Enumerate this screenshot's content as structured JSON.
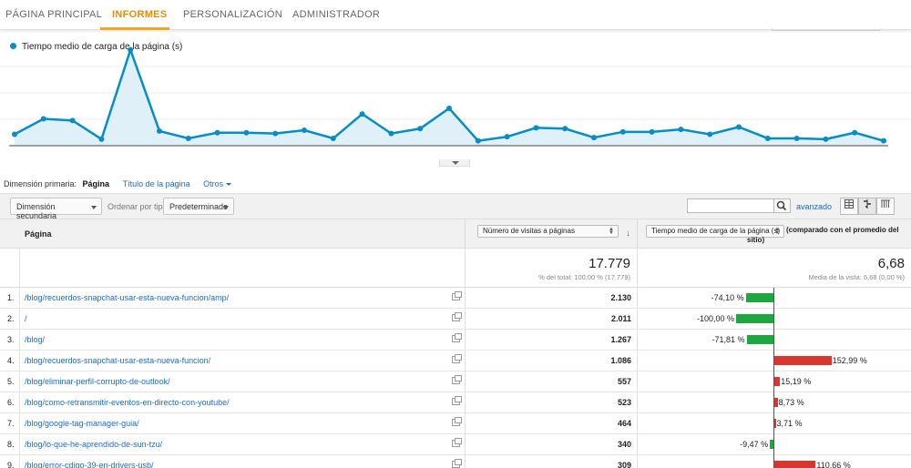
{
  "nav": {
    "tabs": [
      {
        "label": "PÁGINA PRINCIPAL"
      },
      {
        "label": "INFORMES"
      },
      {
        "label": "PERSONALIZACIÓN"
      },
      {
        "label": "ADMINISTRADOR"
      }
    ],
    "active_tab": "INFORMES"
  },
  "chart": {
    "legend": "Tiempo medio de carga de la página (s)",
    "color": "#058dc7",
    "fill": "#dff0f8"
  },
  "chart_data": {
    "type": "area",
    "series": [
      {
        "name": "Tiempo medio de carga de la página (s)",
        "values": [
          14,
          33,
          31,
          8,
          118,
          18,
          9,
          16,
          16,
          15,
          19,
          9,
          39,
          15,
          21,
          46,
          6,
          11,
          22,
          21,
          10,
          17,
          17,
          20,
          14,
          23,
          9,
          9,
          8,
          16,
          6
        ]
      }
    ],
    "ylim": [
      0,
      130
    ],
    "grid": true
  },
  "dimension": {
    "label": "Dimensión primaria:",
    "selected": "Página",
    "option_title": "Título de la página",
    "option_other": "Otros"
  },
  "controls": {
    "secondary": "Dimensión secundaria",
    "sort_label": "Ordenar por tipo:",
    "sort_value": "Predeterminado",
    "search_placeholder": "",
    "advanced": "avanzado"
  },
  "table": {
    "col_page": "Página",
    "col_metric": "Número de visitas a páginas",
    "col_compare_select": "Tiempo medio de carga de la página (s)",
    "col_compare_suffix_1": "(comparado con el promedio del",
    "col_compare_suffix_2": "sitio)",
    "totals": {
      "visits": "17.779",
      "visits_sub": "% del total: 100,00 % (17.779)",
      "avg": "6,68",
      "avg_sub": "Media de la vista: 6,68 (0,00 %)"
    },
    "rows": [
      {
        "n": "1.",
        "page": "/blog/recuerdos-snapchat-usar-esta-nueva-funcion/amp/",
        "visits": "2.130",
        "pct_label": "-74,10 %",
        "pct": -74.1
      },
      {
        "n": "2.",
        "page": "/",
        "visits": "2.011",
        "pct_label": "-100,00 %",
        "pct": -100.0
      },
      {
        "n": "3.",
        "page": "/blog/",
        "visits": "1.267",
        "pct_label": "-71,81 %",
        "pct": -71.81
      },
      {
        "n": "4.",
        "page": "/blog/recuerdos-snapchat-usar-esta-nueva-funcion/",
        "visits": "1.086",
        "pct_label": "152,99 %",
        "pct": 152.99
      },
      {
        "n": "5.",
        "page": "/blog/eliminar-perfil-corrupto-de-outlook/",
        "visits": "557",
        "pct_label": "15,19 %",
        "pct": 15.19
      },
      {
        "n": "6.",
        "page": "/blog/como-retransmitir-eventos-en-directo-con-youtube/",
        "visits": "523",
        "pct_label": "8,73 %",
        "pct": 8.73
      },
      {
        "n": "7.",
        "page": "/blog/google-tag-manager-guia/",
        "visits": "464",
        "pct_label": "3,71 %",
        "pct": 3.71
      },
      {
        "n": "8.",
        "page": "/blog/lo-que-he-aprendido-de-sun-tzu/",
        "visits": "340",
        "pct_label": "-9,47 %",
        "pct": -9.47
      },
      {
        "n": "9.",
        "page": "/blog/error-cdigo-39-en-drivers-usb/",
        "visits": "309",
        "pct_label": "110,66 %",
        "pct": 110.66
      }
    ]
  }
}
